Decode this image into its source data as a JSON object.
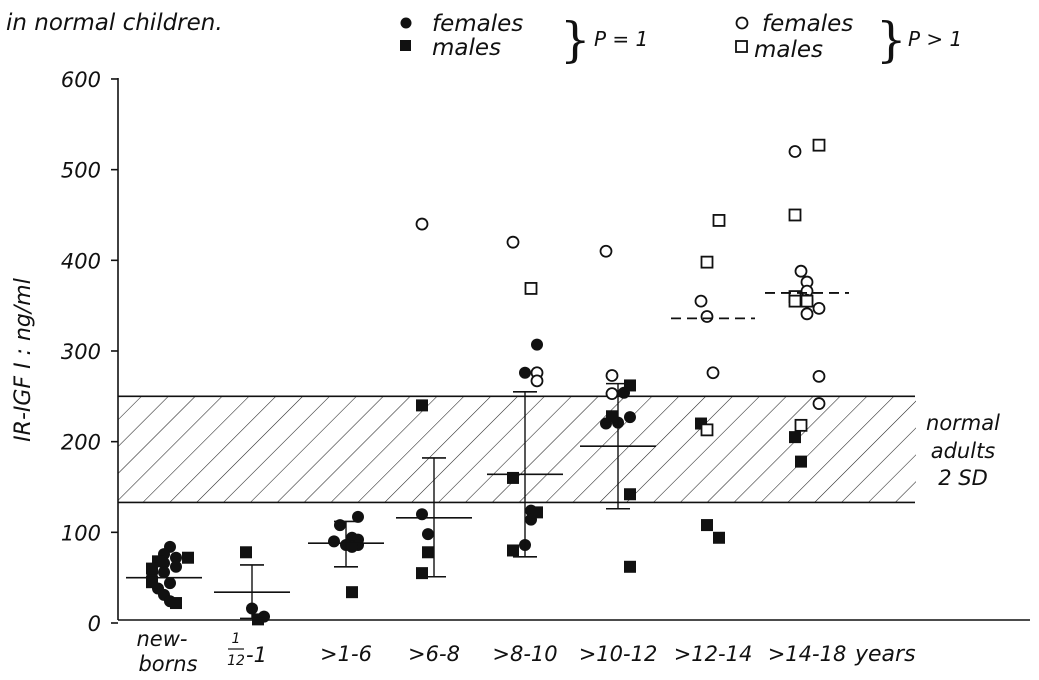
{
  "chart_data": {
    "type": "scatter",
    "title": "in normal children.",
    "ylabel": "IR-IGF I : ng/ml",
    "xlabel": "years",
    "ylim": [
      0,
      600
    ],
    "yticks": [
      0,
      100,
      200,
      300,
      400,
      500,
      600
    ],
    "categories": [
      "new-borns",
      "1/12-1",
      ">1-6",
      ">6-8",
      ">8-10",
      ">10-12",
      ">12-14",
      ">14-18"
    ],
    "category_labels": [
      {
        "line1": "new-",
        "line2": "borns"
      },
      {
        "num": "1",
        "den": "12",
        "rest": "-1"
      },
      {
        "line1": ">1-6"
      },
      {
        "line1": ">6-8"
      },
      {
        "line1": ">8-10"
      },
      {
        "line1": ">10-12"
      },
      {
        "line1": ">12-14"
      },
      {
        "line1": ">14-18"
      }
    ],
    "legend": {
      "p1_females": "females",
      "p1_males": "males",
      "p1_label": "P = 1",
      "p2_females": "females",
      "p2_males": "males",
      "p2_label": "P > 1"
    },
    "normal_band": {
      "low": 133,
      "high": 250,
      "label_lines": [
        "normal",
        "adults",
        "2 SD"
      ]
    },
    "series": [
      {
        "name": "females P = 1",
        "marker": "filled-circle",
        "points": [
          [
            0,
            84
          ],
          [
            0,
            76
          ],
          [
            0,
            72
          ],
          [
            0,
            66
          ],
          [
            0,
            62
          ],
          [
            0,
            56
          ],
          [
            0,
            50
          ],
          [
            0,
            44
          ],
          [
            0,
            38
          ],
          [
            0,
            31
          ],
          [
            0,
            24
          ],
          [
            1,
            16
          ],
          [
            1,
            7
          ],
          [
            2,
            117
          ],
          [
            2,
            108
          ],
          [
            2,
            94
          ],
          [
            2,
            86
          ],
          [
            2,
            92
          ],
          [
            2,
            86
          ],
          [
            2,
            84
          ],
          [
            2,
            90
          ],
          [
            3,
            120
          ],
          [
            3,
            98
          ],
          [
            4,
            307
          ],
          [
            4,
            276
          ],
          [
            4,
            124
          ],
          [
            4,
            114
          ],
          [
            4,
            86
          ],
          [
            5,
            254
          ],
          [
            5,
            227
          ],
          [
            5,
            221
          ],
          [
            5,
            220
          ]
        ]
      },
      {
        "name": "males P = 1",
        "marker": "filled-square",
        "points": [
          [
            0,
            72
          ],
          [
            0,
            68
          ],
          [
            0,
            60
          ],
          [
            0,
            45
          ],
          [
            0,
            22
          ],
          [
            1,
            78
          ],
          [
            1,
            4
          ],
          [
            2,
            34
          ],
          [
            3,
            240
          ],
          [
            3,
            78
          ],
          [
            3,
            55
          ],
          [
            4,
            160
          ],
          [
            4,
            122
          ],
          [
            4,
            80
          ],
          [
            5,
            262
          ],
          [
            5,
            228
          ],
          [
            5,
            142
          ],
          [
            5,
            62
          ],
          [
            6,
            220
          ],
          [
            6,
            108
          ],
          [
            6,
            94
          ],
          [
            7,
            205
          ],
          [
            7,
            178
          ]
        ]
      },
      {
        "name": "females P > 1",
        "marker": "open-circle",
        "points": [
          [
            3,
            440
          ],
          [
            4,
            420
          ],
          [
            4,
            276
          ],
          [
            4,
            267
          ],
          [
            5,
            410
          ],
          [
            5,
            273
          ],
          [
            5,
            253
          ],
          [
            6,
            355
          ],
          [
            6,
            338
          ],
          [
            6,
            276
          ],
          [
            7,
            520
          ],
          [
            7,
            388
          ],
          [
            7,
            376
          ],
          [
            7,
            366
          ],
          [
            7,
            356
          ],
          [
            7,
            347
          ],
          [
            7,
            341
          ],
          [
            7,
            272
          ],
          [
            7,
            242
          ]
        ]
      },
      {
        "name": "males P > 1",
        "marker": "open-square",
        "points": [
          [
            4,
            369
          ],
          [
            6,
            444
          ],
          [
            6,
            398
          ],
          [
            6,
            213
          ],
          [
            7,
            527
          ],
          [
            7,
            450
          ],
          [
            7,
            360
          ],
          [
            7,
            355
          ],
          [
            7,
            355
          ],
          [
            7,
            218
          ]
        ]
      }
    ],
    "mean_sd": [
      {
        "cat": 0,
        "mean": 50
      },
      {
        "cat": 1,
        "mean": 34,
        "sd_low": 5,
        "sd_high": 64
      },
      {
        "cat": 2,
        "mean": 88,
        "sd_low": 62,
        "sd_high": 112
      },
      {
        "cat": 3,
        "mean": 116,
        "sd_low": 51,
        "sd_high": 182
      },
      {
        "cat": 4,
        "mean": 164,
        "sd_low": 73,
        "sd_high": 255
      },
      {
        "cat": 5,
        "mean": 195,
        "sd_low": 126,
        "sd_high": 264
      }
    ],
    "mean_dashed": [
      {
        "cat": 6,
        "mean": 336
      },
      {
        "cat": 7,
        "mean": 364
      }
    ]
  }
}
